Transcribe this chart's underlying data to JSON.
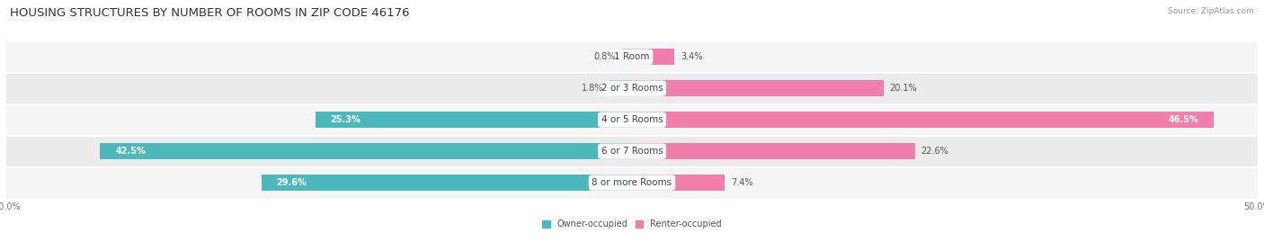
{
  "title": "HOUSING STRUCTURES BY NUMBER OF ROOMS IN ZIP CODE 46176",
  "source": "Source: ZipAtlas.com",
  "categories": [
    "1 Room",
    "2 or 3 Rooms",
    "4 or 5 Rooms",
    "6 or 7 Rooms",
    "8 or more Rooms"
  ],
  "owner_values": [
    0.8,
    1.8,
    25.3,
    42.5,
    29.6
  ],
  "renter_values": [
    3.4,
    20.1,
    46.5,
    22.6,
    7.4
  ],
  "owner_color": "#4db8bc",
  "renter_color": "#f07fab",
  "row_bg_even": "#f5f5f5",
  "row_bg_odd": "#ebebeb",
  "axis_max": 50.0,
  "title_fontsize": 9.5,
  "source_fontsize": 6.5,
  "value_fontsize": 7.0,
  "cat_fontsize": 7.5,
  "bar_height": 0.52,
  "inside_label_threshold_owner": 20.0,
  "inside_label_threshold_renter": 15.0
}
